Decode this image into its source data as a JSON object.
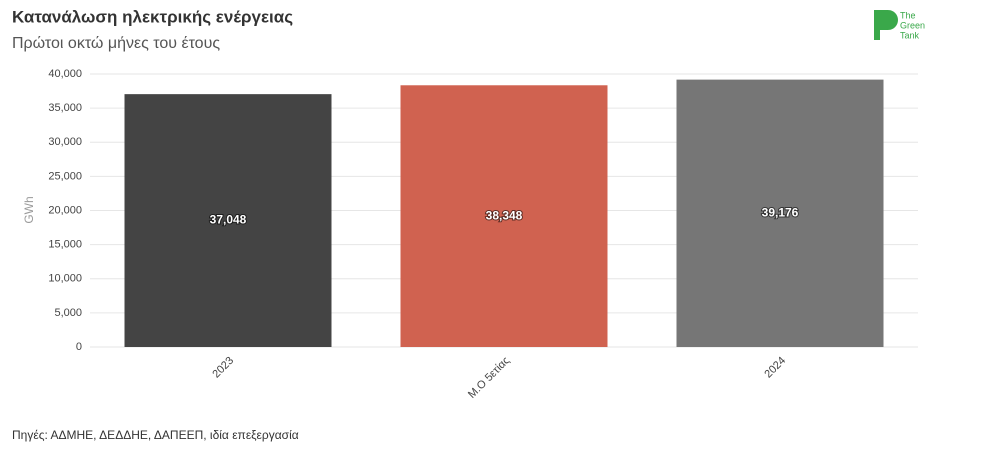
{
  "chart_data": {
    "type": "bar",
    "title": "Κατανάλωση ηλεκτρικής ενέργειας",
    "subtitle": "Πρώτοι οκτώ μήνες του έτους",
    "y_label": "GWh",
    "source": "Πηγές: ΑΔΜΗΕ, ΔΕΔΔΗΕ, ΔΑΠΕΕΠ, ιδία επεξεργασία",
    "logo": [
      "The",
      "Green",
      "Tank"
    ],
    "categories": [
      "2023",
      "Μ.Ο 5ετίας",
      "2024"
    ],
    "values": [
      37048,
      38348,
      39176
    ],
    "value_labels": [
      "37,048",
      "38,348",
      "39,176"
    ],
    "colors": [
      "#444444",
      "#d06250",
      "#767676"
    ],
    "ylim": [
      0,
      40000
    ],
    "yticks": [
      0,
      {
        "value": 5000,
        "label": "5,000"
      },
      {
        "value": 10000,
        "label": "10,000"
      },
      {
        "value": 15000,
        "label": "15,000"
      },
      {
        "value": 20000,
        "label": "20,000"
      },
      {
        "value": 25000,
        "label": "25,000"
      },
      {
        "value": 30000,
        "label": "30,000"
      },
      {
        "value": 35000,
        "label": "35,000"
      },
      {
        "value": 40000,
        "label": "40,000"
      }
    ],
    "grid": true
  }
}
